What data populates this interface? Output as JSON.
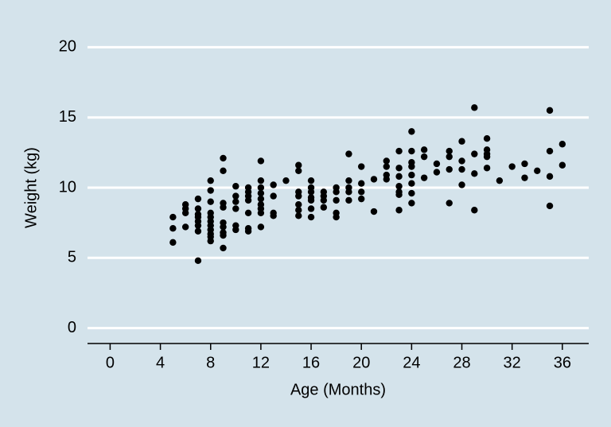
{
  "chart_data": {
    "type": "scatter",
    "x_label": "Age (Months)",
    "y_label": "Weight (kg)",
    "color": "#000000",
    "xlim": [
      -1.8,
      38.1
    ],
    "ylim": [
      -1.1,
      21.1
    ],
    "xticks": [
      0,
      4,
      8,
      12,
      16,
      20,
      24,
      28,
      32,
      36
    ],
    "yticks": [
      0,
      5,
      10,
      15,
      20
    ],
    "grid": true,
    "x": [
      5,
      5,
      5,
      6,
      6,
      6,
      6,
      7,
      7,
      7,
      7,
      7,
      7,
      7,
      7,
      8,
      8,
      8,
      8,
      8,
      8,
      8,
      8,
      8,
      8,
      8,
      9,
      9,
      9,
      9,
      9,
      9,
      9,
      9,
      9,
      10,
      10,
      10,
      10,
      10,
      10,
      11,
      11,
      11,
      11,
      11,
      11,
      11,
      12,
      12,
      12,
      12,
      12,
      12,
      12,
      12,
      12,
      13,
      13,
      13,
      13,
      14,
      15,
      15,
      15,
      15,
      15,
      15,
      15,
      16,
      16,
      16,
      16,
      16,
      16,
      16,
      17,
      17,
      17,
      17,
      18,
      18,
      18,
      18,
      18,
      19,
      19,
      19,
      19,
      19,
      20,
      20,
      20,
      20,
      21,
      21,
      22,
      22,
      22,
      22,
      23,
      23,
      23,
      23,
      23,
      23,
      23,
      24,
      24,
      24,
      24,
      24,
      24,
      24,
      24,
      25,
      25,
      25,
      26,
      26,
      27,
      27,
      27,
      27,
      28,
      28,
      28,
      28,
      29,
      29,
      29,
      29,
      30,
      30,
      30,
      30,
      30,
      31,
      32,
      33,
      33,
      34,
      35,
      35,
      35,
      35,
      36,
      36
    ],
    "values": [
      7.9,
      7.1,
      6.1,
      8.8,
      8.5,
      8.2,
      7.2,
      9.2,
      8.5,
      8.1,
      7.9,
      7.6,
      7.3,
      6.9,
      4.8,
      10.5,
      9.8,
      9.0,
      8.2,
      7.9,
      7.6,
      7.3,
      7.0,
      6.7,
      6.5,
      6.2,
      12.1,
      11.2,
      8.9,
      8.6,
      7.5,
      7.2,
      6.8,
      6.6,
      5.7,
      10.1,
      9.4,
      9.0,
      8.5,
      7.3,
      7.0,
      10.0,
      9.7,
      9.4,
      9.1,
      8.2,
      7.1,
      6.9,
      11.9,
      10.5,
      10.0,
      9.6,
      9.2,
      8.8,
      8.5,
      8.2,
      7.2,
      10.2,
      9.4,
      8.2,
      8.0,
      10.5,
      11.6,
      11.2,
      9.7,
      9.4,
      8.8,
      8.4,
      8.0,
      10.5,
      10.0,
      9.7,
      9.3,
      9.1,
      8.5,
      7.9,
      9.7,
      9.4,
      9.1,
      8.6,
      10.0,
      9.7,
      9.1,
      8.2,
      7.9,
      12.4,
      10.5,
      10.0,
      9.7,
      9.1,
      11.5,
      10.3,
      9.7,
      9.2,
      10.6,
      8.3,
      11.9,
      11.5,
      10.9,
      10.6,
      12.6,
      11.4,
      10.8,
      10.1,
      9.7,
      9.5,
      8.4,
      14.0,
      12.6,
      11.8,
      11.5,
      10.9,
      10.3,
      9.6,
      8.9,
      12.7,
      12.2,
      10.7,
      11.7,
      11.1,
      12.6,
      12.2,
      11.3,
      8.9,
      13.3,
      11.9,
      11.3,
      10.2,
      15.7,
      12.4,
      11.0,
      8.4,
      13.5,
      12.7,
      12.4,
      12.2,
      11.4,
      10.5,
      11.5,
      11.7,
      10.7,
      11.2,
      15.5,
      12.6,
      10.8,
      8.7,
      13.1,
      11.6
    ]
  }
}
